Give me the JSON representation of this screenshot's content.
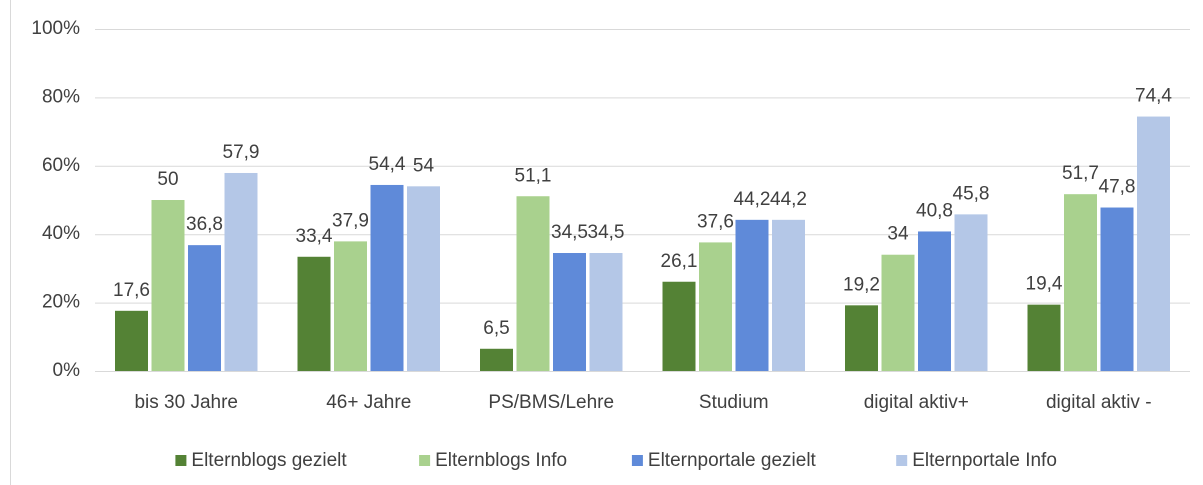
{
  "chart_data": {
    "type": "bar",
    "categories": [
      "bis 30 Jahre",
      "46+ Jahre",
      "PS/BMS/Lehre",
      "Studium",
      "digital aktiv+",
      "digital aktiv -"
    ],
    "series": [
      {
        "name": "Elternblogs gezielt",
        "color": "#548235",
        "values": [
          17.6,
          33.4,
          6.5,
          26.1,
          19.2,
          19.4
        ],
        "value_labels": [
          "17,6",
          "33,4",
          "6,5",
          "26,1",
          "19,2",
          "19,4"
        ]
      },
      {
        "name": "Elternblogs Info",
        "color": "#a9d18e",
        "values": [
          50,
          37.9,
          51.1,
          37.6,
          34,
          51.7
        ],
        "value_labels": [
          "50",
          "37,9",
          "51,1",
          "37,6",
          "34",
          "51,7"
        ]
      },
      {
        "name": "Elternportale gezielt",
        "color": "#5f8ad9",
        "values": [
          36.8,
          54.4,
          34.5,
          44.2,
          40.8,
          47.8
        ],
        "value_labels": [
          "36,8",
          "54,4",
          "34,5",
          "44,2",
          "40,8",
          "47,8"
        ]
      },
      {
        "name": "Elternportale Info",
        "color": "#b4c7e7",
        "values": [
          57.9,
          54,
          34.5,
          44.2,
          45.8,
          74.4
        ],
        "value_labels": [
          "57,9",
          "54",
          "34,5",
          "44,2",
          "45,8",
          "74,4"
        ]
      }
    ],
    "ylim": [
      0,
      100
    ],
    "yticks": [
      {
        "value": 0,
        "label": "0%"
      },
      {
        "value": 20,
        "label": "20%"
      },
      {
        "value": 40,
        "label": "40%"
      },
      {
        "value": 60,
        "label": "60%"
      },
      {
        "value": 80,
        "label": "80%"
      },
      {
        "value": 100,
        "label": "100%"
      }
    ],
    "grid": true,
    "legend": "bottom"
  }
}
